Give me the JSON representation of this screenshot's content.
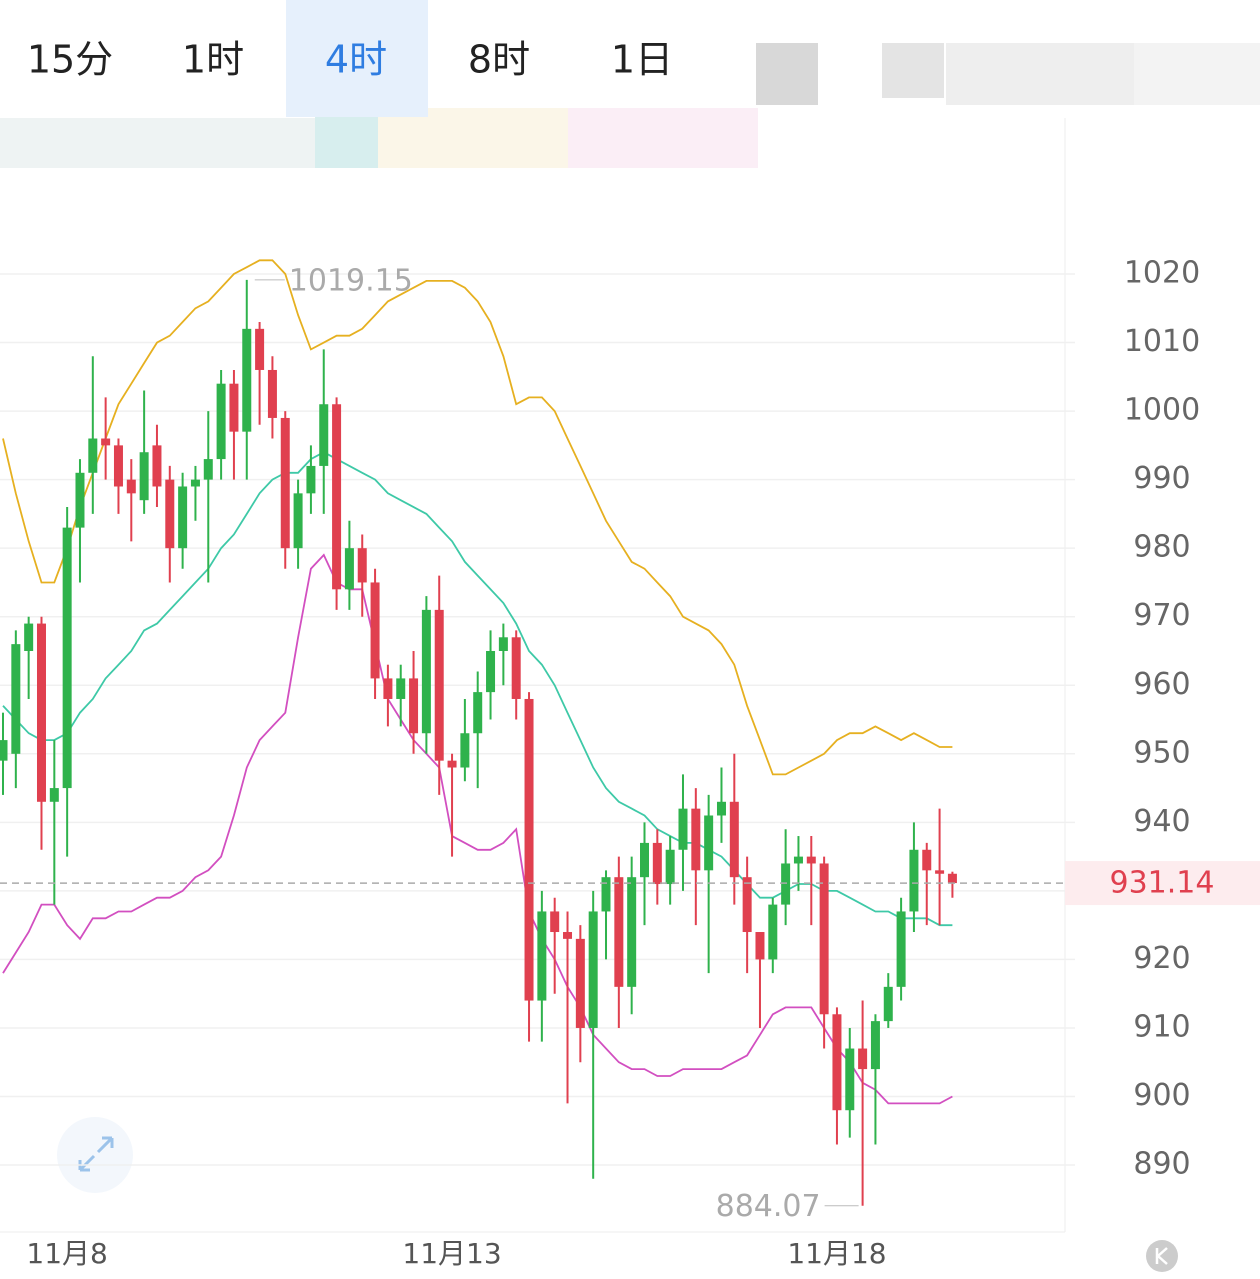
{
  "tabs": [
    "15分",
    "1时",
    "4时",
    "8时",
    "1日"
  ],
  "active_tab": 2,
  "chart_data": {
    "type": "candlestick",
    "categories": [
      null,
      null,
      null,
      null,
      null,
      "11月8",
      null,
      null,
      null,
      null,
      null,
      null,
      null,
      null,
      null,
      null,
      null,
      null,
      null,
      null,
      null,
      null,
      null,
      null,
      null,
      null,
      null,
      null,
      null,
      null,
      null,
      null,
      null,
      null,
      null,
      "11月13",
      null,
      null,
      null,
      null,
      null,
      null,
      null,
      null,
      null,
      null,
      null,
      null,
      null,
      null,
      null,
      null,
      null,
      null,
      null,
      null,
      null,
      null,
      null,
      null,
      null,
      null,
      null,
      null,
      null,
      "11月18",
      null,
      null,
      null,
      null,
      null,
      null,
      null,
      null,
      null
    ],
    "open": [
      949,
      950,
      965,
      969,
      943,
      945,
      983,
      991,
      996,
      995,
      990,
      987,
      995,
      990,
      980,
      989,
      990,
      993,
      1004,
      997,
      1012,
      1006,
      999,
      980,
      988,
      992,
      1001,
      974,
      980,
      975,
      961,
      958,
      961,
      953,
      971,
      949,
      948,
      953,
      959,
      965,
      967,
      958,
      914,
      927,
      924,
      923,
      910,
      927,
      932,
      916,
      932,
      937,
      931,
      936,
      942,
      933,
      941,
      943,
      932,
      924,
      920,
      928,
      934,
      935,
      934,
      912,
      898,
      907,
      904,
      911,
      916,
      927,
      936,
      933,
      932.5
    ],
    "high": [
      956,
      968,
      970,
      970,
      952,
      986,
      993,
      1008,
      1002,
      996,
      993,
      1003,
      998,
      992,
      991,
      992,
      1000,
      1006,
      1006,
      1019.15,
      1013,
      1008,
      1000,
      990,
      995,
      1009,
      1002,
      984,
      982,
      977,
      963,
      963,
      965,
      973,
      976,
      950,
      958,
      962,
      968,
      969,
      968,
      959,
      930,
      929,
      927,
      925,
      930,
      933,
      935,
      935,
      940,
      939,
      938,
      947,
      945,
      944,
      948,
      950,
      935,
      924,
      929,
      939,
      938,
      938,
      935,
      913,
      910,
      914,
      912,
      918,
      929,
      940,
      937,
      942,
      932.8
    ],
    "low": [
      944,
      945,
      958,
      936,
      928,
      935,
      975,
      985,
      990,
      985,
      981,
      985,
      986,
      975,
      977,
      984,
      975,
      990,
      990,
      990,
      998,
      996,
      977,
      977,
      985,
      985,
      971,
      971,
      970,
      958,
      954,
      954,
      950,
      950,
      944,
      935,
      946,
      945,
      955,
      960,
      955,
      908,
      908,
      915,
      899,
      905,
      888,
      920,
      910,
      912,
      925,
      928,
      928,
      930,
      925,
      918,
      937,
      928,
      918,
      910,
      918,
      925,
      930,
      925,
      907,
      893,
      894,
      884.07,
      893,
      910,
      914,
      924,
      925,
      925,
      929
    ],
    "close": [
      952,
      966,
      969,
      943,
      945,
      983,
      991,
      996,
      995,
      989,
      988,
      994,
      989,
      980,
      989,
      990,
      993,
      1004,
      997,
      1012,
      1006,
      999,
      980,
      988,
      992,
      1001,
      974,
      980,
      975,
      961,
      958,
      961,
      953,
      971,
      949,
      948,
      953,
      959,
      965,
      967,
      958,
      914,
      927,
      924,
      923,
      910,
      927,
      932,
      916,
      932,
      937,
      931,
      936,
      942,
      933,
      941,
      943,
      932,
      924,
      920,
      928,
      934,
      935,
      934,
      912,
      898,
      907,
      904,
      911,
      916,
      927,
      936,
      933,
      932.5,
      931.14
    ],
    "up_color": "#2fb24c",
    "down_color": "#e0404f",
    "overlays": [
      {
        "color": "#e6b020",
        "values": [
          996,
          988,
          981,
          975,
          975,
          980,
          986,
          991,
          996,
          1001,
          1004,
          1007,
          1010,
          1011,
          1013,
          1015,
          1016,
          1018,
          1020,
          1021,
          1022,
          1022,
          1020,
          1014,
          1009,
          1010,
          1011,
          1011,
          1012,
          1014,
          1016,
          1017,
          1018,
          1019,
          1019,
          1019,
          1018,
          1016,
          1013,
          1008,
          1001,
          1002,
          1002,
          1000,
          996,
          992,
          988,
          984,
          981,
          978,
          977,
          975,
          973,
          970,
          969,
          968,
          966,
          963,
          957,
          952,
          947,
          947,
          948,
          949,
          950,
          952,
          953,
          953,
          954,
          953,
          952,
          953,
          952,
          951,
          951
        ]
      },
      {
        "color": "#3ec9a7",
        "values": [
          957,
          955,
          953,
          952,
          952,
          953,
          956,
          958,
          961,
          963,
          965,
          968,
          969,
          971,
          973,
          975,
          977,
          980,
          982,
          985,
          988,
          990,
          991,
          991,
          993,
          994,
          993,
          992,
          991,
          990,
          988,
          987,
          986,
          985,
          983,
          981,
          978,
          976,
          974,
          972,
          969,
          965,
          963,
          960,
          956,
          952,
          948,
          945,
          943,
          942,
          941,
          939,
          938,
          937,
          937,
          936,
          935,
          933,
          931,
          929,
          929,
          930,
          931,
          931,
          930,
          930,
          929,
          928,
          927,
          927,
          926,
          926,
          926,
          925,
          925
        ]
      },
      {
        "color": "#d24fc0",
        "values": [
          918,
          921,
          924,
          928,
          928,
          925,
          923,
          926,
          926,
          927,
          927,
          928,
          929,
          929,
          930,
          932,
          933,
          935,
          941,
          948,
          952,
          954,
          956,
          967,
          977,
          979,
          975,
          974,
          974,
          966,
          958,
          955,
          952,
          950,
          948,
          938,
          937,
          936,
          936,
          937,
          939,
          927,
          923,
          920,
          916,
          913,
          909,
          907,
          905,
          904,
          904,
          903,
          903,
          904,
          904,
          904,
          904,
          905,
          906,
          909,
          912,
          913,
          913,
          913,
          910,
          907,
          905,
          902,
          901,
          899,
          899,
          899,
          899,
          899,
          900
        ]
      }
    ],
    "ylim": [
      880,
      1035
    ],
    "yticks": [
      890,
      900,
      910,
      920,
      930,
      940,
      950,
      960,
      970,
      980,
      990,
      1000,
      1010,
      1020
    ],
    "grid": true,
    "high_marker": 19,
    "low_marker": 67
  }
}
